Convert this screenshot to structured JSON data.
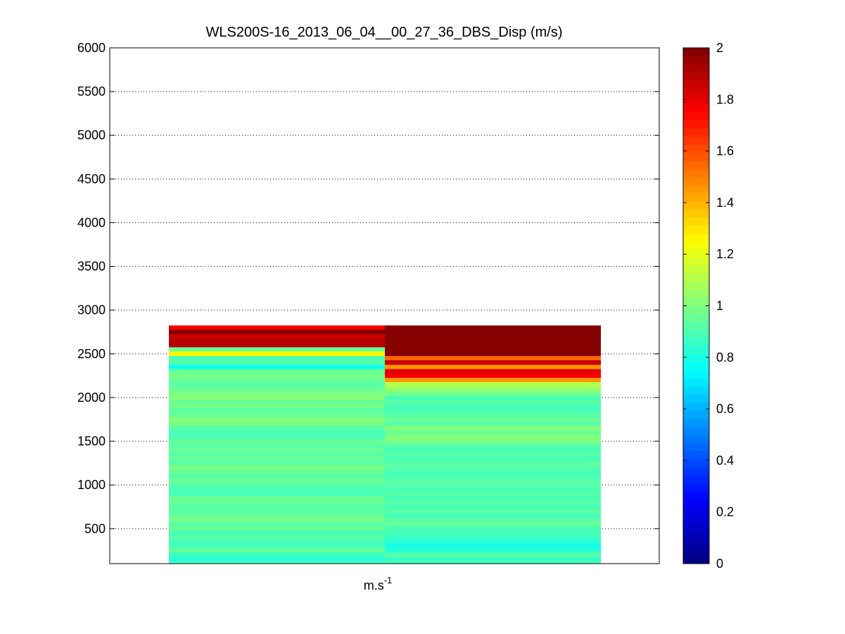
{
  "chart_data": {
    "type": "heatmap",
    "title": "WLS200S-16_2013_06_04__00_27_36_DBS_Disp (m/s)",
    "xlabel": {
      "base": "m.s",
      "exponent": "-1"
    },
    "ylabel": "",
    "ylim": [
      100,
      6000
    ],
    "yticks": [
      500,
      1000,
      1500,
      2000,
      2500,
      3000,
      3500,
      4000,
      4500,
      5000,
      5500,
      6000
    ],
    "ygrid": true,
    "ygrid_style": "dotted",
    "colormap": "jet",
    "colorbar": {
      "range": [
        0,
        2
      ],
      "ticks": [
        0,
        0.2,
        0.4,
        0.6,
        0.8,
        1,
        1.2,
        1.4,
        1.6,
        1.8,
        2
      ],
      "tick_labels": [
        "0",
        "0.2",
        "0.4",
        "0.6",
        "0.8",
        "1",
        "1.2",
        "1.4",
        "1.6",
        "1.8",
        "2"
      ],
      "placement": "right"
    },
    "layer_height": 50,
    "bottom_altitude": 100,
    "columns": [
      {
        "values": [
          0.88,
          0.82,
          0.85,
          0.95,
          0.9,
          0.88,
          0.93,
          0.9,
          0.95,
          0.92,
          0.97,
          0.95,
          0.93,
          0.92,
          0.95,
          0.95,
          0.9,
          0.88,
          0.92,
          0.95,
          0.93,
          0.95,
          0.97,
          0.93,
          0.95,
          0.92,
          0.95,
          0.93,
          0.95,
          0.9,
          0.88,
          0.92,
          0.97,
          1.02,
          0.95,
          0.93,
          0.97,
          0.95,
          1.0,
          0.97,
          0.95,
          0.93,
          0.95,
          0.97,
          0.95,
          0.78,
          0.92,
          0.9,
          1.25,
          0.95,
          1.9,
          1.9,
          1.85,
          2.0,
          1.75
        ]
      },
      {
        "values": [
          0.88,
          0.85,
          0.92,
          0.82,
          0.8,
          0.83,
          0.85,
          0.88,
          0.9,
          0.95,
          0.92,
          0.88,
          0.92,
          0.9,
          0.92,
          0.9,
          0.93,
          0.88,
          0.92,
          0.93,
          0.88,
          0.9,
          0.92,
          0.93,
          0.9,
          0.92,
          0.88,
          0.93,
          0.97,
          1.0,
          0.95,
          1.02,
          0.93,
          0.95,
          0.92,
          0.9,
          0.88,
          0.92,
          0.9,
          0.97,
          1.05,
          1.1,
          1.45,
          1.75,
          1.8,
          1.45,
          1.85,
          1.55,
          2.0,
          2.0,
          2.0,
          2.0,
          2.0,
          2.0,
          2.0
        ]
      }
    ]
  }
}
